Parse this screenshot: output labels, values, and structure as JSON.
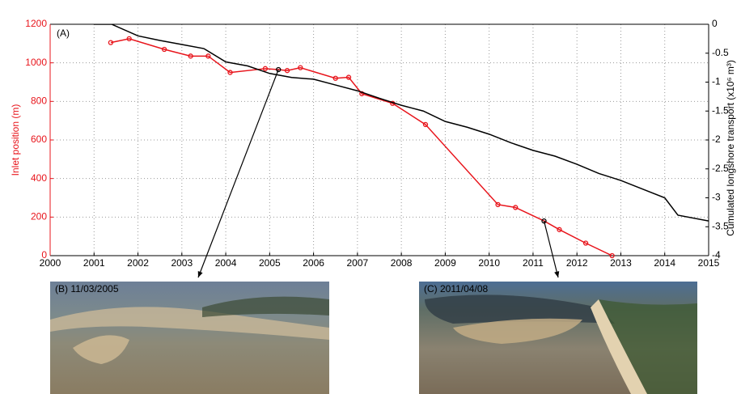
{
  "chart_data": {
    "type": "line",
    "y_label": "Inlet position (m)",
    "y2_label": "Cumulated longshore transport (x10⁶ m³)",
    "annotation": "(A)",
    "xlim": [
      2000,
      2015
    ],
    "xticks": [
      2000,
      2001,
      2002,
      2003,
      2004,
      2005,
      2006,
      2007,
      2008,
      2009,
      2010,
      2011,
      2012,
      2013,
      2014,
      2015
    ],
    "ylim": [
      0,
      1200
    ],
    "yticks": [
      0,
      200,
      400,
      600,
      800,
      1000,
      1200
    ],
    "y2lim": [
      -4,
      0
    ],
    "y2ticks": [
      -4,
      -3.5,
      -3,
      -2.5,
      -2,
      -1.5,
      -1,
      -0.5,
      0
    ],
    "grid": true,
    "series": [
      {
        "name": "Inlet position",
        "color": "#e8141b",
        "axis": "y",
        "markers": true,
        "x": [
          2001.38,
          2001.8,
          2002.6,
          2003.2,
          2003.6,
          2004.1,
          2004.9,
          2005.2,
          2005.4,
          2005.7,
          2006.5,
          2006.8,
          2007.1,
          2007.8,
          2008.55,
          2010.2,
          2010.6,
          2011.25,
          2011.6,
          2012.2,
          2012.8
        ],
        "values": [
          1105,
          1125,
          1070,
          1035,
          1035,
          950,
          970,
          965,
          960,
          975,
          920,
          925,
          840,
          790,
          680,
          265,
          250,
          180,
          135,
          65,
          0
        ]
      },
      {
        "name": "Cumulated longshore transport",
        "color": "#000000",
        "axis": "y2",
        "markers": false,
        "x": [
          2001.0,
          2001.4,
          2002.0,
          2002.5,
          2003.0,
          2003.5,
          2004.0,
          2004.5,
          2005.0,
          2005.5,
          2006.0,
          2006.5,
          2007.0,
          2007.5,
          2008.0,
          2008.5,
          2009.0,
          2009.5,
          2010.0,
          2010.5,
          2011.0,
          2011.5,
          2012.0,
          2012.5,
          2013.0,
          2013.5,
          2014.0,
          2014.3,
          2015.0
        ],
        "values": [
          0,
          0,
          -0.2,
          -0.28,
          -0.35,
          -0.42,
          -0.65,
          -0.72,
          -0.85,
          -0.92,
          -0.95,
          -1.05,
          -1.15,
          -1.28,
          -1.4,
          -1.5,
          -1.68,
          -1.78,
          -1.9,
          -2.05,
          -2.18,
          -2.28,
          -2.42,
          -2.58,
          -2.7,
          -2.85,
          -3.0,
          -3.3,
          -3.4
        ]
      }
    ],
    "photos": [
      {
        "label": "(B) 11/03/2005",
        "points_to": 7
      },
      {
        "label": "(C) 2011/04/08",
        "points_to": 17
      }
    ]
  }
}
